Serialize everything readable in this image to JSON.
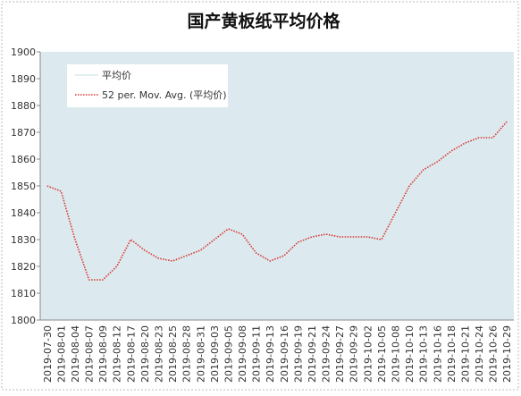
{
  "chart_data": {
    "type": "line",
    "title": "国产黄板纸平均价格",
    "categories": [
      "2019-07-30",
      "2019-08-01",
      "2019-08-04",
      "2019-08-07",
      "2019-08-09",
      "2019-08-12",
      "2019-08-17",
      "2019-08-20",
      "2019-08-23",
      "2019-08-25",
      "2019-08-28",
      "2019-08-31",
      "2019-09-03",
      "2019-09-05",
      "2019-09-08",
      "2019-09-11",
      "2019-09-13",
      "2019-09-16",
      "2019-09-19",
      "2019-09-21",
      "2019-09-24",
      "2019-09-27",
      "2019-09-29",
      "2019-10-02",
      "2019-10-05",
      "2019-10-08",
      "2019-10-10",
      "2019-10-13",
      "2019-10-16",
      "2019-10-18",
      "2019-10-21",
      "2019-10-24",
      "2019-10-26",
      "2019-10-29"
    ],
    "series": [
      {
        "name": "平均价",
        "color": "#d6ecea",
        "dash": false,
        "values": [
          1850,
          1848,
          1830,
          1815,
          1815,
          1820,
          1830,
          1826,
          1823,
          1822,
          1824,
          1826,
          1830,
          1834,
          1832,
          1825,
          1822,
          1824,
          1829,
          1831,
          1832,
          1831,
          1831,
          1831,
          1830,
          1840,
          1850,
          1856,
          1859,
          1863,
          1866,
          1868,
          1868,
          1874
        ]
      },
      {
        "name": "52 per. Mov. Avg. (平均价)",
        "color": "#e03030",
        "dash": true,
        "values": [
          1850,
          1848,
          1830,
          1815,
          1815,
          1820,
          1830,
          1826,
          1823,
          1822,
          1824,
          1826,
          1830,
          1834,
          1832,
          1825,
          1822,
          1824,
          1829,
          1831,
          1832,
          1831,
          1831,
          1831,
          1830,
          1840,
          1850,
          1856,
          1859,
          1863,
          1866,
          1868,
          1868,
          1874
        ]
      }
    ],
    "ylim": [
      1800,
      1900
    ],
    "yticks": [
      1800,
      1810,
      1820,
      1830,
      1840,
      1850,
      1860,
      1870,
      1880,
      1890,
      1900
    ],
    "grid": false
  }
}
